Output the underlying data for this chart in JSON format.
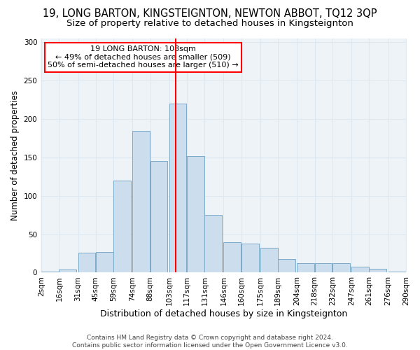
{
  "title": "19, LONG BARTON, KINGSTEIGNTON, NEWTON ABBOT, TQ12 3QP",
  "subtitle": "Size of property relative to detached houses in Kingsteignton",
  "xlabel": "Distribution of detached houses by size in Kingsteignton",
  "ylabel": "Number of detached properties",
  "bar_color": "#ccdded",
  "bar_edge_color": "#7aaac8",
  "grid_color": "#dde8f0",
  "background_color": "#eef3f8",
  "vline_x": 108,
  "vline_color": "red",
  "annotation_text": "19 LONG BARTON: 108sqm\n← 49% of detached houses are smaller (509)\n50% of semi-detached houses are larger (510) →",
  "annotation_box_color": "white",
  "annotation_border_color": "red",
  "bins_left": [
    2,
    16,
    31,
    45,
    59,
    74,
    88,
    103,
    117,
    131,
    146,
    160,
    175,
    189,
    204,
    218,
    232,
    247,
    261,
    276
  ],
  "bin_width": 14,
  "heights": [
    1,
    4,
    26,
    27,
    120,
    185,
    145,
    220,
    152,
    75,
    40,
    38,
    32,
    18,
    12,
    12,
    12,
    8,
    5,
    1
  ],
  "ylim": [
    0,
    305
  ],
  "yticks": [
    0,
    50,
    100,
    150,
    200,
    250,
    300
  ],
  "xtick_labels": [
    "2sqm",
    "16sqm",
    "31sqm",
    "45sqm",
    "59sqm",
    "74sqm",
    "88sqm",
    "103sqm",
    "117sqm",
    "131sqm",
    "146sqm",
    "160sqm",
    "175sqm",
    "189sqm",
    "204sqm",
    "218sqm",
    "232sqm",
    "247sqm",
    "261sqm",
    "276sqm",
    "290sqm"
  ],
  "footer_text": "Contains HM Land Registry data © Crown copyright and database right 2024.\nContains public sector information licensed under the Open Government Licence v3.0.",
  "title_fontsize": 10.5,
  "subtitle_fontsize": 9.5,
  "xlabel_fontsize": 9,
  "ylabel_fontsize": 8.5,
  "tick_fontsize": 7.5,
  "footer_fontsize": 6.5,
  "annotation_fontsize": 8
}
